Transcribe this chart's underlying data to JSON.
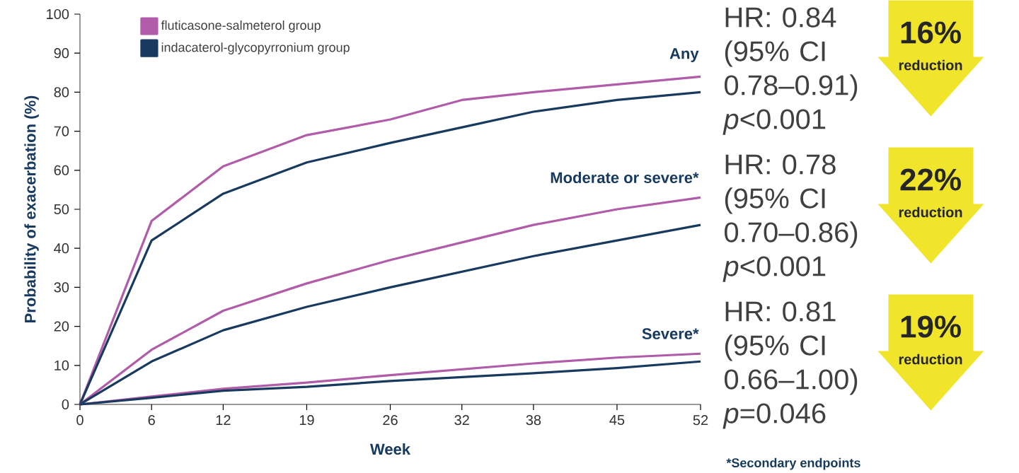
{
  "chart_data": {
    "type": "line",
    "xlabel": "Week",
    "ylabel": "Probability of exacerbation (%)",
    "x": [
      0,
      6,
      12,
      19,
      26,
      32,
      38,
      45,
      52
    ],
    "xlim": [
      0,
      52
    ],
    "xticks": [
      0,
      6,
      12,
      19,
      26,
      32,
      38,
      45,
      52
    ],
    "ylim": [
      0,
      100
    ],
    "yticks": [
      0,
      10,
      20,
      30,
      40,
      50,
      60,
      70,
      80,
      90,
      100
    ],
    "legend": "top left",
    "series": [
      {
        "name": "fluticasone-salmeterol group",
        "color": "#b05ca8",
        "values": [
          0,
          47,
          61,
          69,
          73,
          78,
          80,
          82,
          84
        ]
      },
      {
        "name": "indacaterol-glycopyrronium group",
        "color": "#173a5e",
        "values": [
          0,
          42,
          54,
          62,
          67,
          71,
          75,
          78,
          80
        ]
      },
      {
        "color": "#b05ca8",
        "values": [
          0,
          14,
          24,
          31,
          37,
          41.5,
          46,
          50,
          53
        ]
      },
      {
        "color": "#173a5e",
        "values": [
          0,
          11,
          19,
          25,
          30,
          34,
          38,
          42,
          46
        ]
      },
      {
        "color": "#b05ca8",
        "values": [
          0,
          2,
          4,
          5.6,
          7.5,
          9,
          10.5,
          12,
          13
        ]
      },
      {
        "color": "#173a5e",
        "values": [
          0,
          1.7,
          3.5,
          4.5,
          6,
          7,
          8,
          9.3,
          11
        ]
      }
    ],
    "annotations": [
      "Any",
      "Moderate or severe*",
      "Severe*",
      "HR: 0.84 (95% CI 0.78–0.91) *p*<0.001",
      "16%",
      "reduction",
      "HR: 0.78 (95% CI 0.70–0.86) *p*<0.001",
      "22%",
      "reduction",
      "HR: 0.81 (95% CI 0.66–1.00) *p*=0.046",
      "19%",
      "reduction",
      "*Secondary endpoints"
    ]
  }
}
